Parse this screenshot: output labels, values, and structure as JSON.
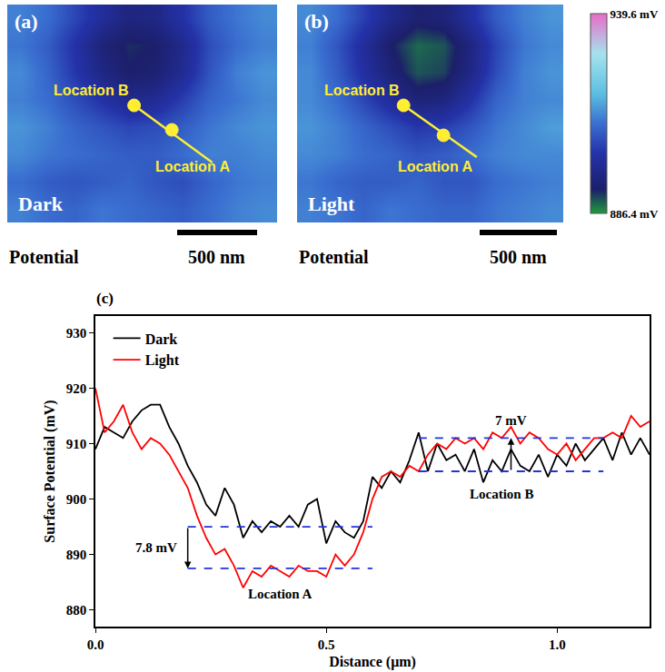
{
  "chart_data": [
    {
      "type": "heatmap",
      "annotations": [
        "(a)",
        "Dark",
        "Potential",
        "500 nm",
        "Location B",
        "Location A"
      ],
      "tick_labels": false,
      "zlim": [
        886.4,
        939.6
      ],
      "cells": [
        [
          912,
          910,
          905,
          900,
          896,
          897,
          902,
          908,
          911,
          913
        ],
        [
          911,
          908,
          902,
          895,
          892,
          893,
          898,
          906,
          910,
          912
        ],
        [
          913,
          909,
          903,
          897,
          893,
          894,
          899,
          907,
          912,
          914
        ],
        [
          912,
          910,
          906,
          902,
          898,
          899,
          904,
          909,
          911,
          913
        ],
        [
          914,
          912,
          909,
          907,
          905,
          906,
          908,
          911,
          913,
          914
        ],
        [
          913,
          911,
          910,
          909,
          908,
          908,
          910,
          912,
          912,
          913
        ],
        [
          910,
          908,
          907,
          908,
          909,
          907,
          906,
          909,
          911,
          912
        ],
        [
          912,
          910,
          909,
          911,
          910,
          909,
          908,
          910,
          912,
          913
        ]
      ]
    },
    {
      "type": "heatmap",
      "annotations": [
        "(b)",
        "Light",
        "Potential",
        "500 nm",
        "Location B",
        "Location A"
      ],
      "tick_labels": false,
      "colorbar": {
        "range": [
          886.4,
          939.6
        ],
        "ticks": [
          {
            "value": 886.4,
            "label": "886.4 mV"
          },
          {
            "value": 939.6,
            "label": "939.6 mV"
          }
        ]
      },
      "cells": [
        [
          913,
          910,
          904,
          898,
          894,
          895,
          901,
          908,
          912,
          914
        ],
        [
          912,
          907,
          900,
          893,
          889,
          890,
          896,
          905,
          911,
          913
        ],
        [
          913,
          908,
          901,
          895,
          890,
          891,
          897,
          906,
          912,
          914
        ],
        [
          913,
          910,
          905,
          900,
          895,
          896,
          902,
          909,
          912,
          913
        ],
        [
          914,
          912,
          909,
          906,
          903,
          904,
          907,
          911,
          913,
          915
        ],
        [
          913,
          912,
          910,
          909,
          907,
          908,
          910,
          912,
          913,
          913
        ],
        [
          911,
          909,
          908,
          908,
          909,
          907,
          907,
          910,
          911,
          912
        ],
        [
          912,
          911,
          909,
          911,
          910,
          909,
          909,
          911,
          912,
          913
        ]
      ]
    },
    {
      "type": "line",
      "x_label": "Distance (μm)",
      "y_label": "Surface Potential (mV)",
      "annotations": [
        "(c)",
        "7 mV",
        "7.8 mV",
        "Location A",
        "Location B"
      ],
      "legend": "upper left",
      "grid": false,
      "xlim": [
        0,
        1.2
      ],
      "xticks": [
        {
          "value": 0,
          "label": "0.0"
        },
        0.5,
        {
          "value": 1,
          "label": "1.0"
        }
      ],
      "ylim": [
        877,
        933
      ],
      "yticks": [
        880,
        890,
        900,
        910,
        920,
        930
      ],
      "reference_lines": [
        {
          "y": 895,
          "x": [
            0.2,
            0.6
          ]
        },
        {
          "y": 887.5,
          "x": [
            0.2,
            0.6
          ]
        },
        {
          "y": 905,
          "x": [
            0.7,
            1.1
          ]
        },
        {
          "y": 911,
          "x": [
            0.7,
            1.1
          ]
        }
      ],
      "x": [
        0,
        0.02,
        0.04,
        0.06,
        0.08,
        0.1,
        0.12,
        0.14,
        0.16,
        0.18,
        0.2,
        0.22,
        0.24,
        0.26,
        0.28,
        0.3,
        0.32,
        0.34,
        0.36,
        0.38,
        0.4,
        0.42,
        0.44,
        0.46,
        0.48,
        0.5,
        0.52,
        0.54,
        0.56,
        0.58,
        0.6,
        0.62,
        0.64,
        0.66,
        0.68,
        0.7,
        0.72,
        0.74,
        0.76,
        0.78,
        0.8,
        0.82,
        0.84,
        0.86,
        0.88,
        0.9,
        0.92,
        0.94,
        0.96,
        0.98,
        1,
        1.02,
        1.04,
        1.06,
        1.08,
        1.1,
        1.12,
        1.14,
        1.16,
        1.18,
        1.2
      ],
      "series": [
        {
          "name": "Dark",
          "color": "#000000",
          "values": [
            909,
            913,
            912,
            911,
            914,
            916,
            917,
            917,
            913,
            910,
            906,
            903,
            899,
            897,
            902,
            899,
            893,
            896,
            894,
            896,
            895,
            897,
            895,
            899,
            900,
            892,
            896,
            894,
            893,
            896,
            904,
            902,
            905,
            903,
            907,
            912,
            905,
            910,
            907,
            908,
            905,
            909,
            903,
            907,
            905,
            909,
            906,
            905,
            908,
            904,
            908,
            906,
            910,
            907,
            909,
            911,
            907,
            912,
            908,
            911,
            908
          ]
        },
        {
          "name": "Light",
          "color": "#ff0000",
          "values": [
            920,
            912,
            914,
            917,
            912,
            909,
            911,
            910,
            908,
            905,
            902,
            897,
            893,
            890,
            891,
            888,
            884,
            887,
            886,
            888,
            887,
            886,
            888,
            887,
            887,
            886,
            890,
            888,
            890,
            894,
            900,
            904,
            905,
            904,
            906,
            905,
            908,
            910,
            909,
            911,
            910,
            911,
            909,
            912,
            911,
            913,
            910,
            912,
            911,
            909,
            908,
            910,
            907,
            909,
            911,
            911,
            912,
            911,
            915,
            913,
            914
          ]
        }
      ]
    }
  ]
}
